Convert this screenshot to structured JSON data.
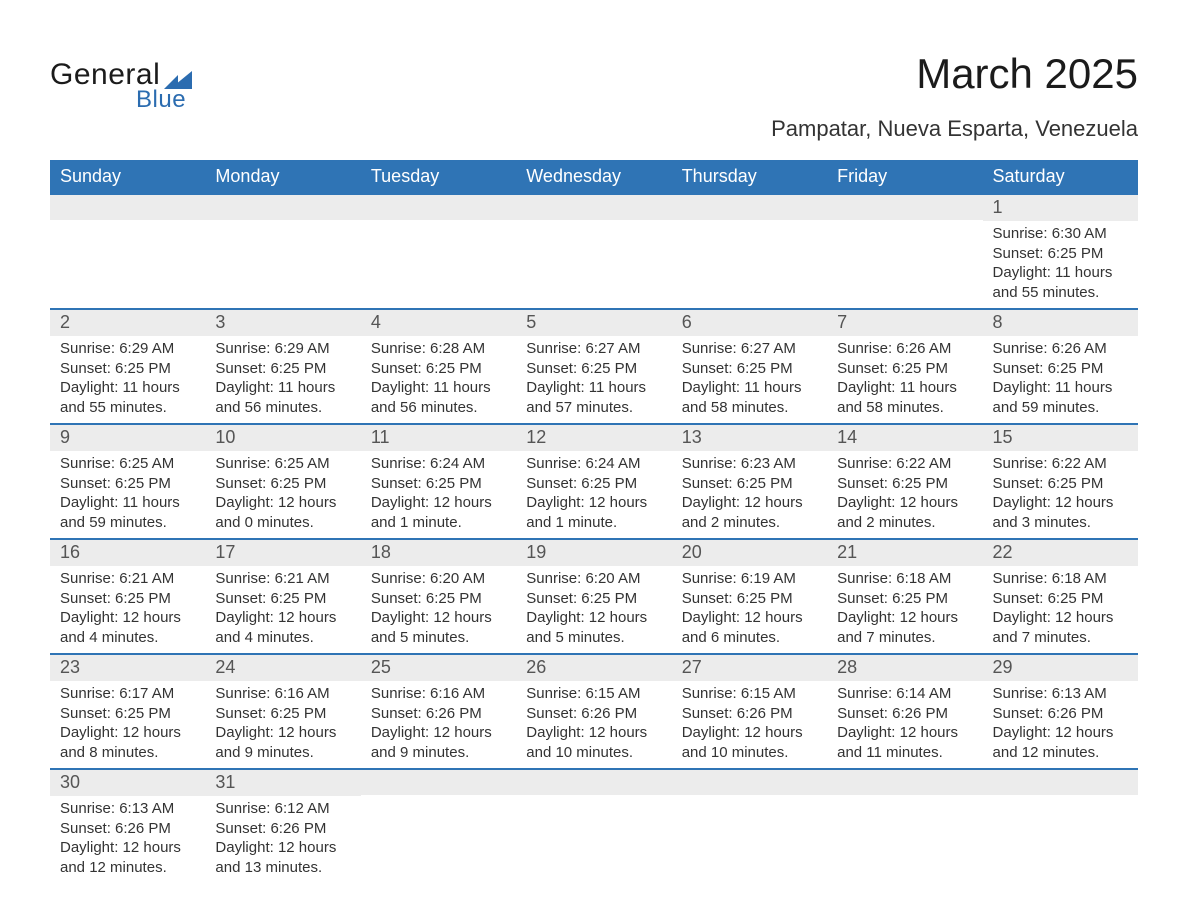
{
  "brand": {
    "name_part1": "General",
    "name_part2": "Blue",
    "color_primary": "#2f74b5",
    "color_logo": "#2b6cb0",
    "color_text": "#1b1b1b"
  },
  "header": {
    "title": "March 2025",
    "location": "Pampatar, Nueva Esparta, Venezuela"
  },
  "calendar": {
    "type": "table",
    "header_bg": "#2f74b5",
    "header_text_color": "#ffffff",
    "daynum_bg": "#ececec",
    "row_divider_color": "#2f74b5",
    "body_text_color": "#333333",
    "font_size_header": 18,
    "font_size_daynum": 18,
    "font_size_body": 15,
    "columns": [
      "Sunday",
      "Monday",
      "Tuesday",
      "Wednesday",
      "Thursday",
      "Friday",
      "Saturday"
    ],
    "weeks": [
      [
        null,
        null,
        null,
        null,
        null,
        null,
        {
          "day": "1",
          "sunrise": "Sunrise: 6:30 AM",
          "sunset": "Sunset: 6:25 PM",
          "daylight1": "Daylight: 11 hours",
          "daylight2": "and 55 minutes."
        }
      ],
      [
        {
          "day": "2",
          "sunrise": "Sunrise: 6:29 AM",
          "sunset": "Sunset: 6:25 PM",
          "daylight1": "Daylight: 11 hours",
          "daylight2": "and 55 minutes."
        },
        {
          "day": "3",
          "sunrise": "Sunrise: 6:29 AM",
          "sunset": "Sunset: 6:25 PM",
          "daylight1": "Daylight: 11 hours",
          "daylight2": "and 56 minutes."
        },
        {
          "day": "4",
          "sunrise": "Sunrise: 6:28 AM",
          "sunset": "Sunset: 6:25 PM",
          "daylight1": "Daylight: 11 hours",
          "daylight2": "and 56 minutes."
        },
        {
          "day": "5",
          "sunrise": "Sunrise: 6:27 AM",
          "sunset": "Sunset: 6:25 PM",
          "daylight1": "Daylight: 11 hours",
          "daylight2": "and 57 minutes."
        },
        {
          "day": "6",
          "sunrise": "Sunrise: 6:27 AM",
          "sunset": "Sunset: 6:25 PM",
          "daylight1": "Daylight: 11 hours",
          "daylight2": "and 58 minutes."
        },
        {
          "day": "7",
          "sunrise": "Sunrise: 6:26 AM",
          "sunset": "Sunset: 6:25 PM",
          "daylight1": "Daylight: 11 hours",
          "daylight2": "and 58 minutes."
        },
        {
          "day": "8",
          "sunrise": "Sunrise: 6:26 AM",
          "sunset": "Sunset: 6:25 PM",
          "daylight1": "Daylight: 11 hours",
          "daylight2": "and 59 minutes."
        }
      ],
      [
        {
          "day": "9",
          "sunrise": "Sunrise: 6:25 AM",
          "sunset": "Sunset: 6:25 PM",
          "daylight1": "Daylight: 11 hours",
          "daylight2": "and 59 minutes."
        },
        {
          "day": "10",
          "sunrise": "Sunrise: 6:25 AM",
          "sunset": "Sunset: 6:25 PM",
          "daylight1": "Daylight: 12 hours",
          "daylight2": "and 0 minutes."
        },
        {
          "day": "11",
          "sunrise": "Sunrise: 6:24 AM",
          "sunset": "Sunset: 6:25 PM",
          "daylight1": "Daylight: 12 hours",
          "daylight2": "and 1 minute."
        },
        {
          "day": "12",
          "sunrise": "Sunrise: 6:24 AM",
          "sunset": "Sunset: 6:25 PM",
          "daylight1": "Daylight: 12 hours",
          "daylight2": "and 1 minute."
        },
        {
          "day": "13",
          "sunrise": "Sunrise: 6:23 AM",
          "sunset": "Sunset: 6:25 PM",
          "daylight1": "Daylight: 12 hours",
          "daylight2": "and 2 minutes."
        },
        {
          "day": "14",
          "sunrise": "Sunrise: 6:22 AM",
          "sunset": "Sunset: 6:25 PM",
          "daylight1": "Daylight: 12 hours",
          "daylight2": "and 2 minutes."
        },
        {
          "day": "15",
          "sunrise": "Sunrise: 6:22 AM",
          "sunset": "Sunset: 6:25 PM",
          "daylight1": "Daylight: 12 hours",
          "daylight2": "and 3 minutes."
        }
      ],
      [
        {
          "day": "16",
          "sunrise": "Sunrise: 6:21 AM",
          "sunset": "Sunset: 6:25 PM",
          "daylight1": "Daylight: 12 hours",
          "daylight2": "and 4 minutes."
        },
        {
          "day": "17",
          "sunrise": "Sunrise: 6:21 AM",
          "sunset": "Sunset: 6:25 PM",
          "daylight1": "Daylight: 12 hours",
          "daylight2": "and 4 minutes."
        },
        {
          "day": "18",
          "sunrise": "Sunrise: 6:20 AM",
          "sunset": "Sunset: 6:25 PM",
          "daylight1": "Daylight: 12 hours",
          "daylight2": "and 5 minutes."
        },
        {
          "day": "19",
          "sunrise": "Sunrise: 6:20 AM",
          "sunset": "Sunset: 6:25 PM",
          "daylight1": "Daylight: 12 hours",
          "daylight2": "and 5 minutes."
        },
        {
          "day": "20",
          "sunrise": "Sunrise: 6:19 AM",
          "sunset": "Sunset: 6:25 PM",
          "daylight1": "Daylight: 12 hours",
          "daylight2": "and 6 minutes."
        },
        {
          "day": "21",
          "sunrise": "Sunrise: 6:18 AM",
          "sunset": "Sunset: 6:25 PM",
          "daylight1": "Daylight: 12 hours",
          "daylight2": "and 7 minutes."
        },
        {
          "day": "22",
          "sunrise": "Sunrise: 6:18 AM",
          "sunset": "Sunset: 6:25 PM",
          "daylight1": "Daylight: 12 hours",
          "daylight2": "and 7 minutes."
        }
      ],
      [
        {
          "day": "23",
          "sunrise": "Sunrise: 6:17 AM",
          "sunset": "Sunset: 6:25 PM",
          "daylight1": "Daylight: 12 hours",
          "daylight2": "and 8 minutes."
        },
        {
          "day": "24",
          "sunrise": "Sunrise: 6:16 AM",
          "sunset": "Sunset: 6:25 PM",
          "daylight1": "Daylight: 12 hours",
          "daylight2": "and 9 minutes."
        },
        {
          "day": "25",
          "sunrise": "Sunrise: 6:16 AM",
          "sunset": "Sunset: 6:26 PM",
          "daylight1": "Daylight: 12 hours",
          "daylight2": "and 9 minutes."
        },
        {
          "day": "26",
          "sunrise": "Sunrise: 6:15 AM",
          "sunset": "Sunset: 6:26 PM",
          "daylight1": "Daylight: 12 hours",
          "daylight2": "and 10 minutes."
        },
        {
          "day": "27",
          "sunrise": "Sunrise: 6:15 AM",
          "sunset": "Sunset: 6:26 PM",
          "daylight1": "Daylight: 12 hours",
          "daylight2": "and 10 minutes."
        },
        {
          "day": "28",
          "sunrise": "Sunrise: 6:14 AM",
          "sunset": "Sunset: 6:26 PM",
          "daylight1": "Daylight: 12 hours",
          "daylight2": "and 11 minutes."
        },
        {
          "day": "29",
          "sunrise": "Sunrise: 6:13 AM",
          "sunset": "Sunset: 6:26 PM",
          "daylight1": "Daylight: 12 hours",
          "daylight2": "and 12 minutes."
        }
      ],
      [
        {
          "day": "30",
          "sunrise": "Sunrise: 6:13 AM",
          "sunset": "Sunset: 6:26 PM",
          "daylight1": "Daylight: 12 hours",
          "daylight2": "and 12 minutes."
        },
        {
          "day": "31",
          "sunrise": "Sunrise: 6:12 AM",
          "sunset": "Sunset: 6:26 PM",
          "daylight1": "Daylight: 12 hours",
          "daylight2": "and 13 minutes."
        },
        null,
        null,
        null,
        null,
        null
      ]
    ]
  }
}
